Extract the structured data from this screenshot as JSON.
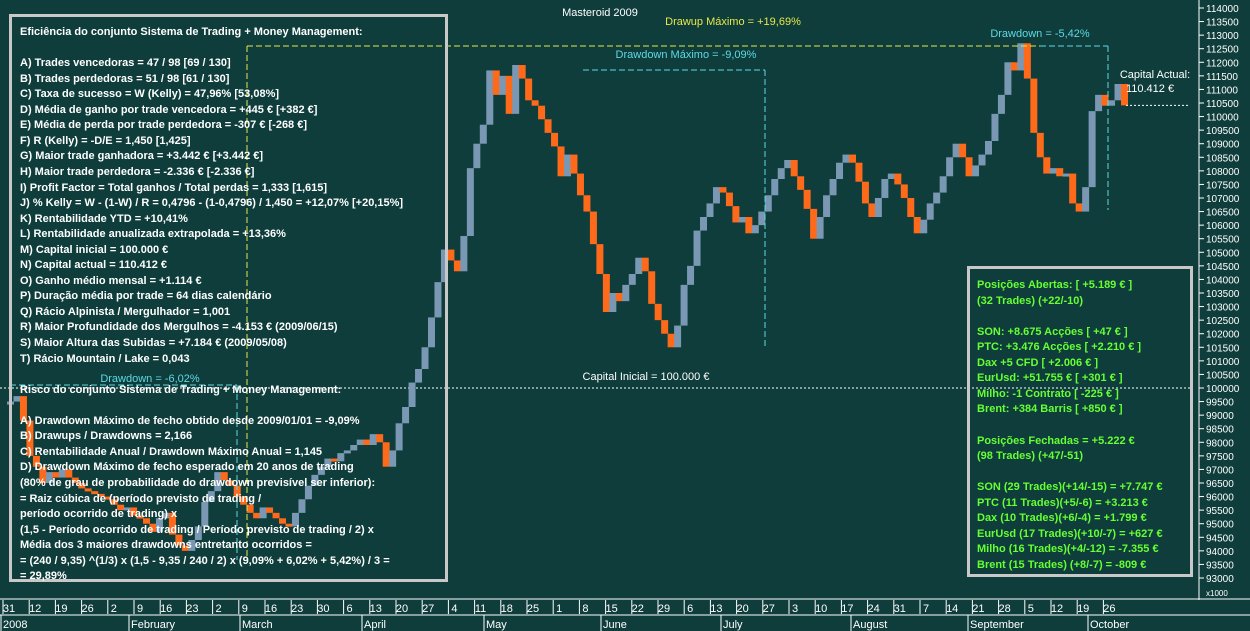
{
  "chart_data": {
    "type": "candlestick",
    "title": "Masteroid 2009",
    "up_color": "#7a98b4",
    "down_color": "#ff6a1a",
    "y_ticks": [
      93000,
      93500,
      94000,
      94500,
      95000,
      95500,
      96000,
      96500,
      97000,
      97500,
      98000,
      98500,
      99000,
      99500,
      100000,
      100500,
      101000,
      101500,
      102000,
      102500,
      103000,
      103500,
      104000,
      104500,
      105000,
      105500,
      106000,
      106500,
      107000,
      107500,
      108000,
      108500,
      109000,
      109500,
      110000,
      110500,
      111000,
      111500,
      112000,
      112500,
      113000,
      113500,
      114000
    ],
    "y_tick_labels": [
      "93000",
      "93500",
      "94000",
      "94500",
      "95000",
      "95500",
      "96000",
      "96500",
      "97000",
      "97500",
      "98000",
      "98500",
      "99000",
      "99500",
      "100000",
      "100500",
      "101000",
      "101500",
      "102000",
      "102500",
      "103000",
      "103500",
      "104000",
      "104500",
      "105000",
      "105500",
      "106000",
      "106500",
      "107000",
      "107500",
      "108000",
      "108500",
      "109000",
      "109500",
      "110000",
      "110500",
      "111000",
      "111500",
      "112000",
      "112500",
      "113000",
      "113500",
      "114000"
    ],
    "y_scale_multiplier": "x1000",
    "ylim": [
      92700,
      114200
    ],
    "x_day_labels": [
      "31",
      "12",
      "19",
      "26",
      "2",
      "9",
      "16",
      "23",
      "2",
      "9",
      "16",
      "23",
      "30",
      "6",
      "13",
      "20",
      "27",
      "4",
      "11",
      "18",
      "25",
      "1",
      "8",
      "15",
      "22",
      "29",
      "6",
      "13",
      "20",
      "27",
      "3",
      "10",
      "17",
      "24",
      "31",
      "7",
      "14",
      "21",
      "28",
      "5",
      "12",
      "19",
      "26"
    ],
    "x_month_labels": [
      "2008",
      "February",
      "March",
      "April",
      "May",
      "June",
      "July",
      "August",
      "September",
      "October"
    ],
    "equity": [
      99500,
      99700,
      98800,
      97500,
      97100,
      96500,
      96900,
      96700,
      97000,
      96700,
      96500,
      96300,
      96200,
      96100,
      96000,
      95900,
      95700,
      95500,
      95600,
      95300,
      95200,
      95000,
      94700,
      95200,
      95400,
      94600,
      94200,
      94000,
      94400,
      94900,
      95800,
      96200,
      96900,
      96600,
      96400,
      96000,
      95700,
      95400,
      95200,
      95600,
      95400,
      95200,
      95000,
      94900,
      95400,
      95900,
      96400,
      96800,
      97100,
      97400,
      97300,
      97600,
      97700,
      97900,
      98100,
      97900,
      98300,
      98000,
      97100,
      97700,
      98700,
      99300,
      100200,
      100700,
      101500,
      102600,
      103900,
      105100,
      104700,
      104300,
      105600,
      108100,
      109000,
      109700,
      111700,
      110800,
      111500,
      110100,
      111900,
      111400,
      110600,
      110400,
      109900,
      109400,
      108900,
      107800,
      108600,
      107900,
      107100,
      106500,
      105300,
      104200,
      102800,
      103500,
      103200,
      103800,
      104200,
      104800,
      104300,
      103100,
      102500,
      102000,
      101500,
      102300,
      103800,
      104500,
      105800,
      106300,
      106800,
      107400,
      107200,
      106700,
      106100,
      106300,
      105700,
      106000,
      106500,
      107100,
      107700,
      108100,
      108400,
      107800,
      107300,
      106600,
      105500,
      106300,
      107100,
      107700,
      108300,
      108600,
      108300,
      107600,
      106800,
      106300,
      107000,
      107700,
      107900,
      107500,
      107000,
      106300,
      105700,
      106200,
      106800,
      107200,
      107800,
      108500,
      109000,
      108500,
      107800,
      108200,
      108600,
      109100,
      110100,
      110800,
      112000,
      111700,
      112700,
      111400,
      109400,
      108500,
      107900,
      108100,
      107800,
      107900,
      106800,
      106500,
      107400,
      110200,
      110800,
      110400,
      110600,
      111200,
      110412
    ],
    "annotations": {
      "drawup_max": "Drawup Máximo = +19,69%",
      "drawdown_max": "Drawdown Máximo = -9,09%",
      "drawdown_recent": "Drawdown = -5,42%",
      "drawdown_early": "Drawdown = -6,02%",
      "capital_actual_label": "Capital Actual:",
      "capital_actual_value": "110.412 €",
      "capital_inicial": "Capital Inicial = 100.000 €"
    },
    "reference_line": 100000,
    "grid": false,
    "legend": "none"
  },
  "left_panel": {
    "lines": [
      "Eficiência do conjunto Sistema de Trading + Money Management:",
      "",
      "A) Trades vencedoras = 47 / 98   [69 / 130]",
      "B) Trades perdedoras = 51 / 98   [61 / 130]",
      "C) Taxa de sucesso = W (Kelly) = 47,96%   [53,08%]",
      "D) Média de ganho por trade vencedora = +445 €  [+382 €]",
      "E) Média de perda por trade perdedora = -307 €  [-268 €]",
      "F) R (Kelly) = -D/E = 1,450   [1,425]",
      "G) Maior trade ganhadora = +3.442 €   [+3.442 €]",
      "H) Maior trade perdedora = -2.336 €   [-2.336 €]",
      "I) Profit Factor = Total ganhos / Total perdas = 1,333   [1,615]",
      "J) % Kelly = W - (1-W) / R = 0,4796 - (1-0,4796) / 1,450 = +12,07%   [+20,15%]",
      "K) Rentabilidade YTD = +10,41%",
      "L) Rentabilidade anualizada extrapolada = +13,36%",
      "M) Capital inicial = 100.000 €",
      "N) Capital actual = 110.412 €",
      "O) Ganho médio mensal = +1.114 €",
      "P) Duração média por trade = 64 dias calendário",
      "Q) Rácio Alpinista / Mergulhador = 1,001",
      "R) Maior Profundidade dos Mergulhos = -4.153 € (2009/06/15)",
      "S) Maior Altura das Subidas = +7.184 € (2009/05/08)",
      "T) Rácio Mountain / Lake = 0,043",
      "",
      "Risco do conjunto Sistema de Trading + Money Management:",
      "",
      "A) Drawdown Máximo de fecho obtido desde 2009/01/01 = -9,09%",
      "B) Drawups / Drawdowns = 2,166",
      "C) Rentabilidade Anual / Drawdown Máximo Anual = 1,145",
      "D) Drawdown Máximo de fecho esperado em 20 anos de trading",
      "(80% de grau de probabilidade do drawdown previsível ser inferior):",
      "= Raiz cúbica de (período previsto de trading /",
      "período ocorrido de trading) x",
      "(1,5 - Período ocorrido de trading / Período previsto de trading / 2) x",
      "Média dos 3 maiores drawdowns entretanto ocorridos =",
      "= (240 / 9,35) ^(1/3) x (1,5 - 9,35 / 240 / 2) x (9,09% + 6,02% + 5,42%) / 3 =",
      "= 29,89%"
    ]
  },
  "right_panel": {
    "lines": [
      "Posições Abertas: [ +5.189 € ]",
      "(32 Trades) (+22/-10)",
      "",
      "SON: +8.675 Acções [ +47 € ]",
      "PTC: +3.476 Acções [ +2.210 € ]",
      "Dax +5 CFD [ +2.006 € ]",
      "EurUsd: +51.755 € [ +301 € ]",
      "Milho: -1 Contrato [ -225 € ]",
      "Brent: +384 Barris [ +850 € ]",
      "",
      "Posições Fechadas = +5.222 €",
      "(98 Trades) (+47/-51)",
      "",
      "SON (29 Trades)(+14/-15) = +7.747 €",
      "PTC (11 Trades)(+5/-6) = +3.213 €",
      "Dax (10 Trades)(+6/-4) = +1.799 €",
      "EurUsd (17 Trades)(+10/-7) = +627 €",
      "Milho (16 Trades)(+4/-12) = -7.355 €",
      "Brent (15 Trades) (+8/-7) = -809 €"
    ]
  },
  "colors": {
    "background": "#0e3d3b",
    "left_text": "#ffffff",
    "right_text": "#66ff33",
    "annotation_cyan": "#5fd9e6",
    "annotation_yellow": "#e8e84a",
    "panel_border": "#c8c8c8"
  }
}
